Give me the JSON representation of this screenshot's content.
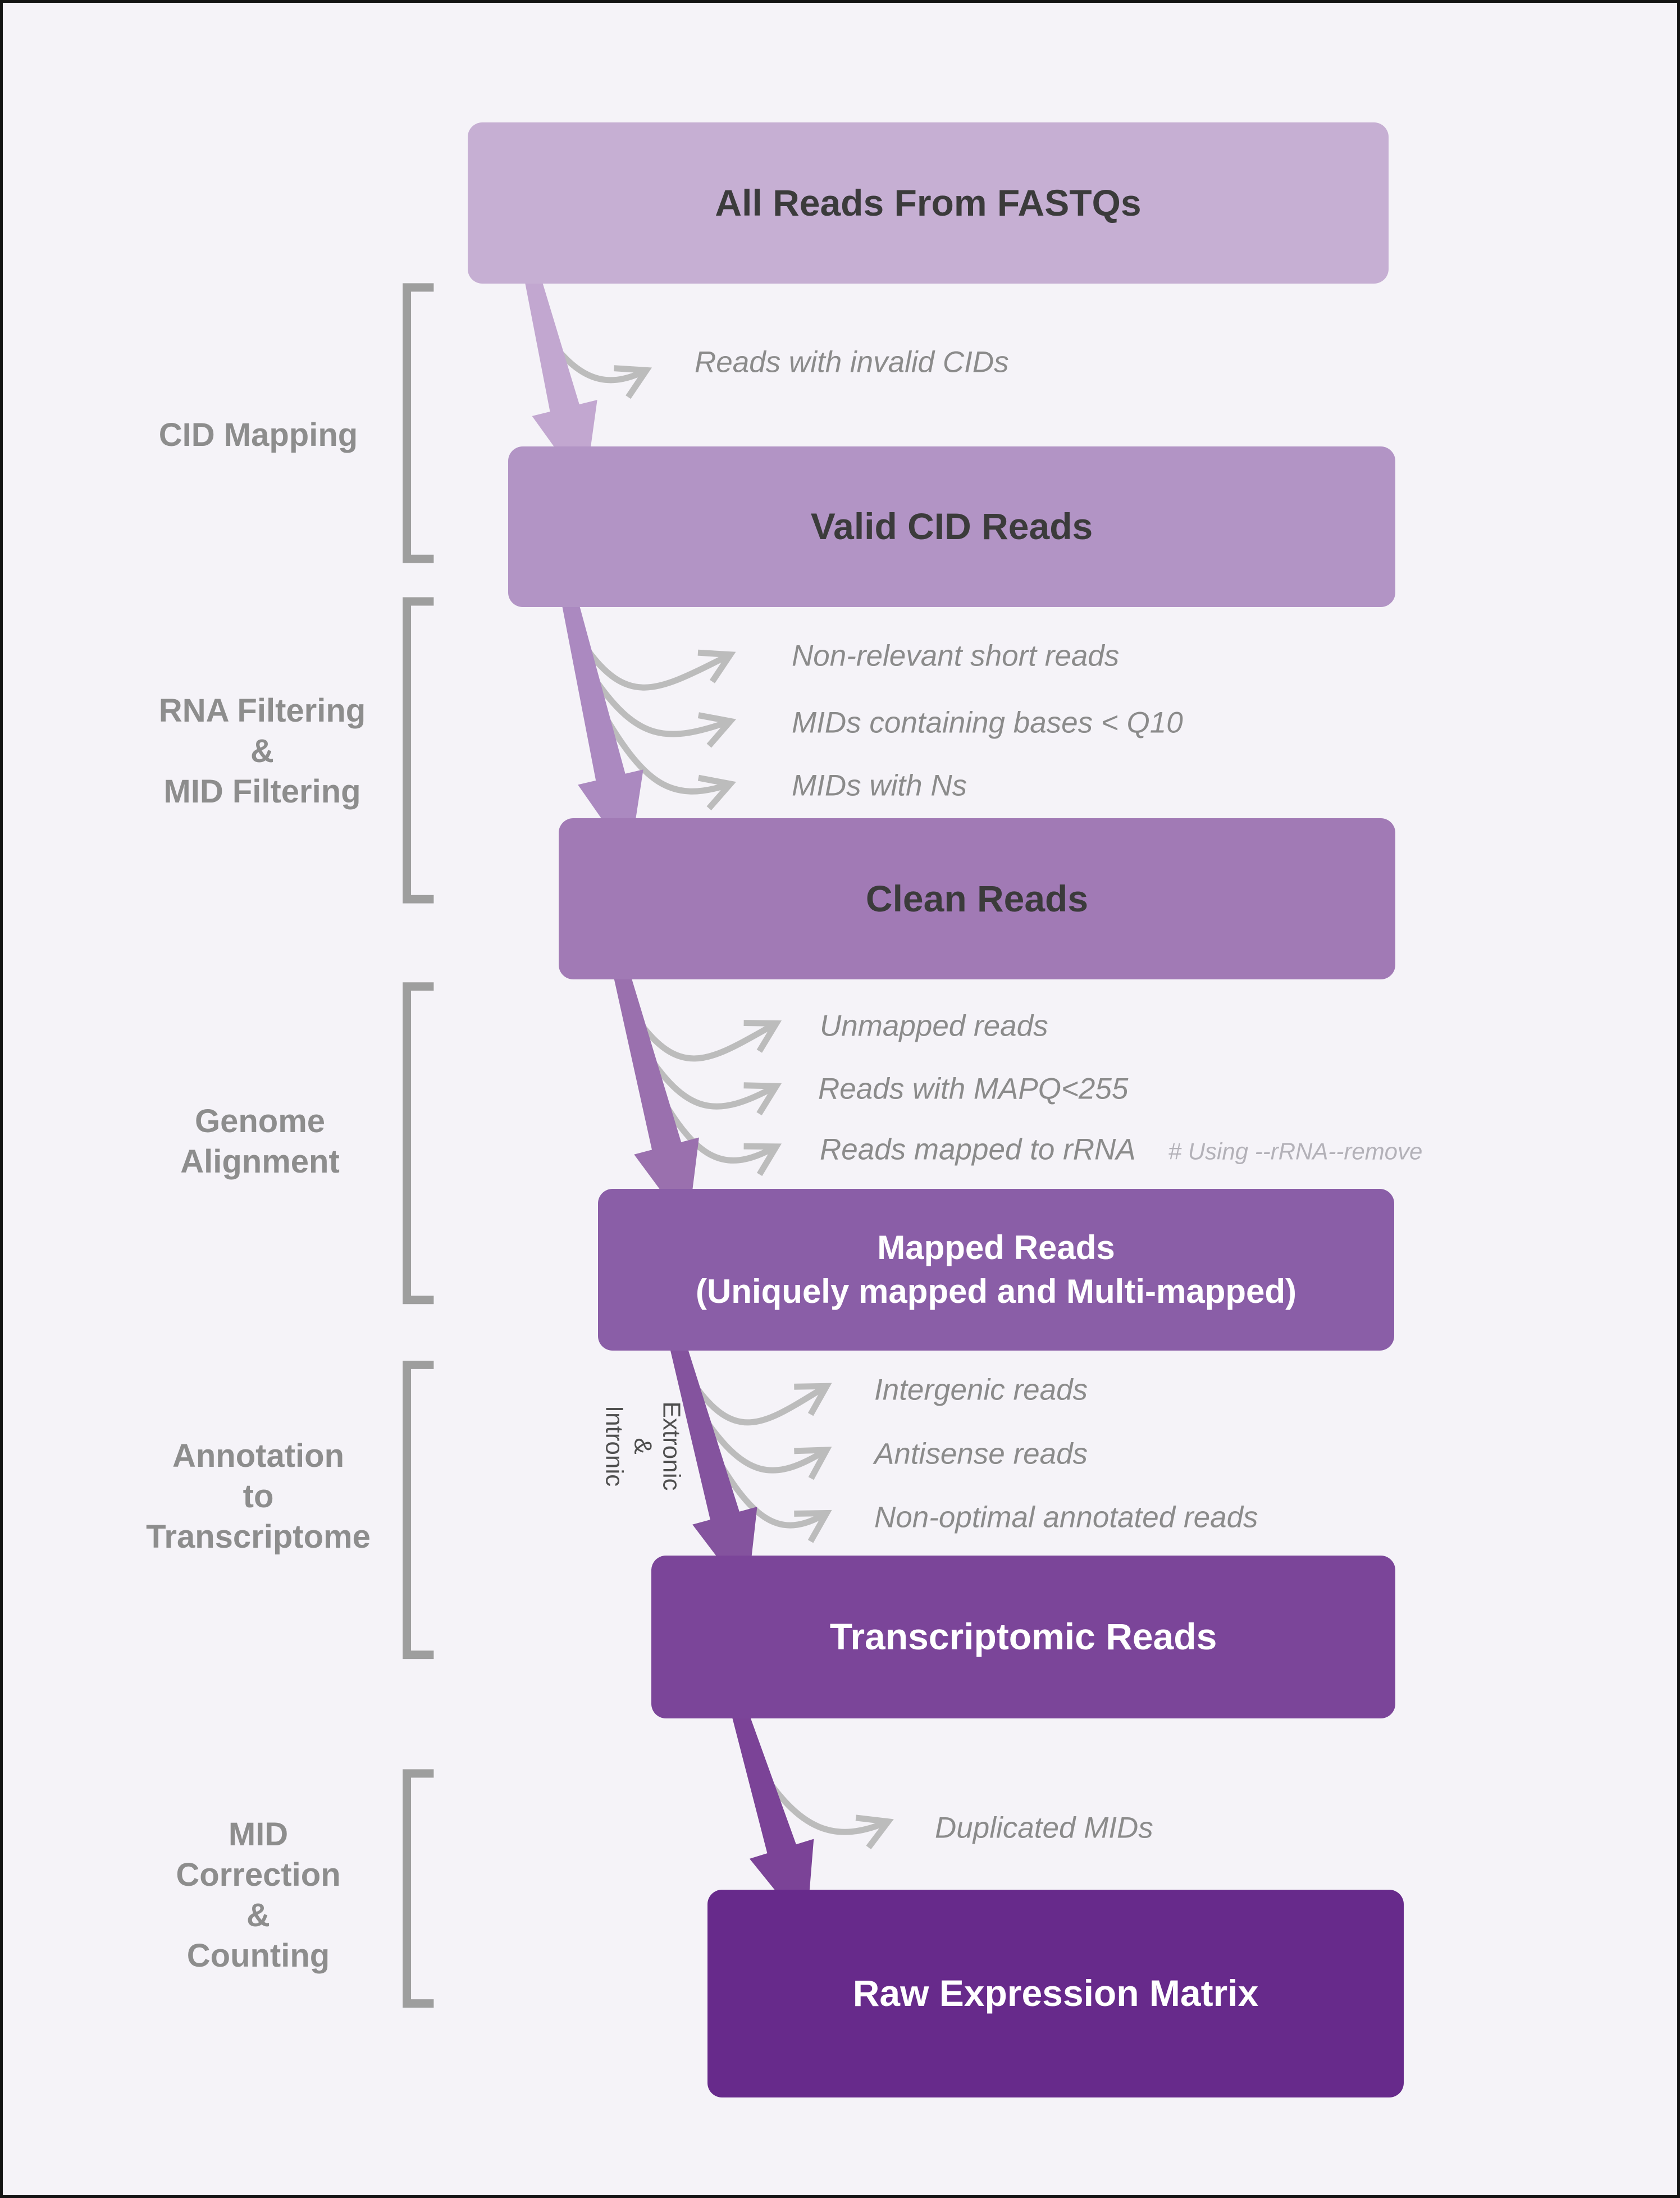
{
  "canvas": {
    "background": "#f5f3f8",
    "frame_color": "#141414"
  },
  "stages": [
    {
      "label": "All Reads From FASTQs",
      "fill": "#c6afd3",
      "text_color": "#3b3b3b",
      "arrow_color": "#c2a7d0"
    },
    {
      "label": "Valid CID Reads",
      "fill": "#b294c5",
      "text_color": "#3b3b3b",
      "arrow_color": "#ab89c0"
    },
    {
      "label": "Clean Reads",
      "fill": "#a17ab5",
      "text_color": "#3b3b3b",
      "arrow_color": "#9a70ae"
    },
    {
      "label": "Mapped Reads",
      "sublabel": "(Uniquely mapped and Multi-mapped)",
      "fill": "#8a5ea7",
      "text_color": "#ffffff",
      "arrow_color": "#84539e"
    },
    {
      "label": "Transcriptomic Reads",
      "fill": "#7b4599",
      "text_color": "#ffffff",
      "arrow_color": "#7b4397"
    },
    {
      "label": "Raw Expression Matrix",
      "fill": "#672a8b",
      "text_color": "#ffffff"
    }
  ],
  "steps": [
    {
      "lines": [
        "CID Mapping"
      ]
    },
    {
      "lines": [
        "RNA Filtering",
        "&",
        "MID Filtering"
      ]
    },
    {
      "lines": [
        "Genome",
        "Alignment"
      ]
    },
    {
      "lines": [
        "Annotation",
        "to",
        "Transcriptome"
      ]
    },
    {
      "lines": [
        "MID",
        "Correction",
        "&",
        "Counting"
      ]
    }
  ],
  "discards": [
    {
      "label": "Reads with invalid CIDs"
    },
    {
      "label": "Non-relevant short reads"
    },
    {
      "label": "MIDs containing bases < Q10"
    },
    {
      "label": "MIDs with Ns"
    },
    {
      "label": "Unmapped reads"
    },
    {
      "label": "Reads with MAPQ<255"
    },
    {
      "label": "Reads mapped to rRNA",
      "note": "# Using --rRNA--remove"
    },
    {
      "label": "Intergenic reads"
    },
    {
      "label": "Antisense reads"
    },
    {
      "label": "Non-optimal annotated reads"
    },
    {
      "label": "Duplicated MIDs"
    }
  ],
  "arrow_annotation": {
    "lines": [
      "Extronic",
      "&",
      "Intronic"
    ]
  },
  "colors": {
    "branch_arrow": "#bcbcbc",
    "bracket": "#9e9e9e",
    "side_text": "#8b8b8b",
    "step_text": "#8d8d8d",
    "note_text": "#b3b1b8",
    "annotation_text": "#4f4f4f"
  }
}
